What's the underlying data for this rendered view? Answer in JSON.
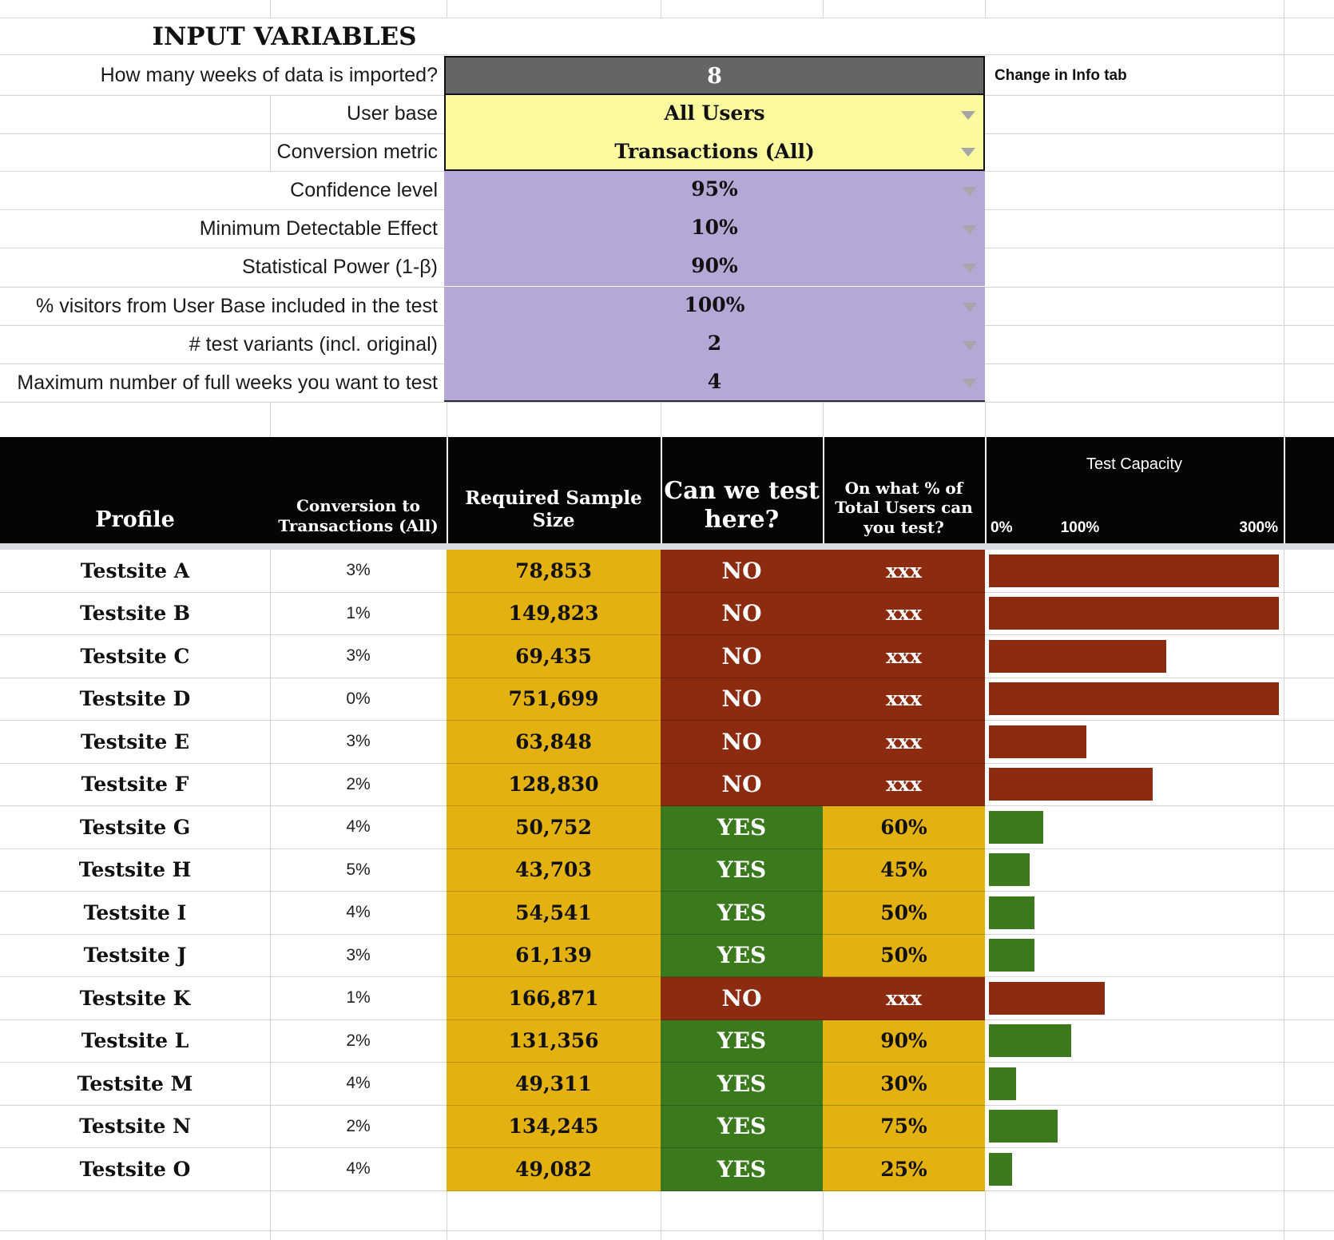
{
  "title": "INPUT VARIABLES",
  "note": "Change in Info tab",
  "inputs": [
    {
      "label": "How many weeks of data is imported?",
      "value": "8",
      "style": "gray",
      "dropdown": false
    },
    {
      "label": "User base",
      "value": "All Users",
      "style": "yellow",
      "dropdown": true
    },
    {
      "label": "Conversion metric",
      "value": "Transactions (All)",
      "style": "yellow",
      "dropdown": true
    },
    {
      "label": "Confidence level",
      "value": "95%",
      "style": "purple",
      "dropdown": true
    },
    {
      "label": "Minimum Detectable Effect",
      "value": "10%",
      "style": "purple",
      "dropdown": true
    },
    {
      "label": "Statistical Power (1-β)",
      "value": "90%",
      "style": "purple",
      "dropdown": true
    },
    {
      "label": "% visitors from User Base included in the test",
      "value": "100%",
      "style": "purple",
      "dropdown": true
    },
    {
      "label": "# test variants (incl. original)",
      "value": "2",
      "style": "purple",
      "dropdown": true
    },
    {
      "label": "Maximum number of full weeks you want to test",
      "value": "4",
      "style": "purple",
      "dropdown": true
    }
  ],
  "table": {
    "headers": {
      "profile": "Profile",
      "conversion": "Conversion to Transactions (All)",
      "sample": "Required Sample Size",
      "can_test": "Can we test here?",
      "pct_users": "On what % of Total Users can you test?",
      "capacity": "Test Capacity"
    },
    "axis": {
      "min": "0%",
      "mid": "100%",
      "max": "300%"
    },
    "rows": [
      {
        "profile": "Testsite A",
        "conversion": "3%",
        "sample_size": "78,853",
        "can_test": "NO",
        "pct_users": "xxx",
        "capacity_pct": 318
      },
      {
        "profile": "Testsite B",
        "conversion": "1%",
        "sample_size": "149,823",
        "can_test": "NO",
        "pct_users": "xxx",
        "capacity_pct": 318
      },
      {
        "profile": "Testsite C",
        "conversion": "3%",
        "sample_size": "69,435",
        "can_test": "NO",
        "pct_users": "xxx",
        "capacity_pct": 195
      },
      {
        "profile": "Testsite D",
        "conversion": "0%",
        "sample_size": "751,699",
        "can_test": "NO",
        "pct_users": "xxx",
        "capacity_pct": 318
      },
      {
        "profile": "Testsite E",
        "conversion": "3%",
        "sample_size": "63,848",
        "can_test": "NO",
        "pct_users": "xxx",
        "capacity_pct": 107
      },
      {
        "profile": "Testsite F",
        "conversion": "2%",
        "sample_size": "128,830",
        "can_test": "NO",
        "pct_users": "xxx",
        "capacity_pct": 180
      },
      {
        "profile": "Testsite G",
        "conversion": "4%",
        "sample_size": "50,752",
        "can_test": "YES",
        "pct_users": "60%",
        "capacity_pct": 60
      },
      {
        "profile": "Testsite H",
        "conversion": "5%",
        "sample_size": "43,703",
        "can_test": "YES",
        "pct_users": "45%",
        "capacity_pct": 45
      },
      {
        "profile": "Testsite I",
        "conversion": "4%",
        "sample_size": "54,541",
        "can_test": "YES",
        "pct_users": "50%",
        "capacity_pct": 50
      },
      {
        "profile": "Testsite J",
        "conversion": "3%",
        "sample_size": "61,139",
        "can_test": "YES",
        "pct_users": "50%",
        "capacity_pct": 50
      },
      {
        "profile": "Testsite K",
        "conversion": "1%",
        "sample_size": "166,871",
        "can_test": "NO",
        "pct_users": "xxx",
        "capacity_pct": 127
      },
      {
        "profile": "Testsite L",
        "conversion": "2%",
        "sample_size": "131,356",
        "can_test": "YES",
        "pct_users": "90%",
        "capacity_pct": 90
      },
      {
        "profile": "Testsite M",
        "conversion": "4%",
        "sample_size": "49,311",
        "can_test": "YES",
        "pct_users": "30%",
        "capacity_pct": 30
      },
      {
        "profile": "Testsite N",
        "conversion": "2%",
        "sample_size": "134,245",
        "can_test": "YES",
        "pct_users": "75%",
        "capacity_pct": 75
      },
      {
        "profile": "Testsite O",
        "conversion": "4%",
        "sample_size": "49,082",
        "can_test": "YES",
        "pct_users": "25%",
        "capacity_pct": 25
      }
    ]
  },
  "colors": {
    "gray": "#656565",
    "yellow": "#FCFA9F",
    "purple": "#B5A8D7",
    "gold": "#E3B110",
    "red": "#8C2B10",
    "green": "#3A7A1D",
    "strip": "#D9DBE4",
    "grid": "#D4D4D4",
    "arrow": "#A6A6A6"
  }
}
